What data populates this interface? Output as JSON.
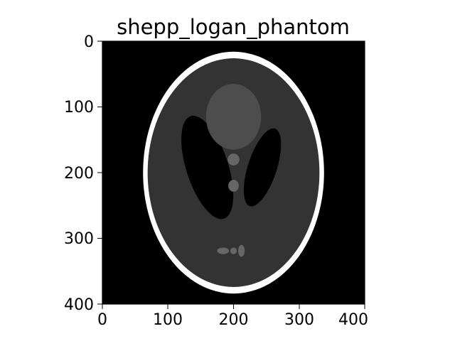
{
  "figure": {
    "title": "shepp_logan_phantom",
    "image_size": [
      400,
      400
    ],
    "x_axis": {
      "range": [
        0,
        400
      ],
      "ticks": [
        "0",
        "100",
        "200",
        "300",
        "400"
      ]
    },
    "y_axis": {
      "range": [
        0,
        400
      ],
      "inverted": true,
      "ticks": [
        "0",
        "100",
        "200",
        "300",
        "400"
      ]
    },
    "colormap": "gray",
    "colors": {
      "background": "#000000",
      "outer_skull": "#ffffff",
      "brain": "#333333",
      "dark_regions": "#000000",
      "light_region": "#4d4d4d",
      "small_features": "#666666"
    }
  },
  "phantom_regions": [
    {
      "name": "skull-outer",
      "cx": 200,
      "cy": 200,
      "rx": 138,
      "ry": 184,
      "rot": 0,
      "fill": "#ffffff"
    },
    {
      "name": "brain",
      "cx": 200,
      "cy": 200,
      "rx": 131,
      "ry": 174,
      "rot": 0,
      "fill": "#333333"
    },
    {
      "name": "dark-left",
      "cx": 160,
      "cy": 192,
      "rx": 32,
      "ry": 82,
      "rot": -18,
      "fill": "#000000"
    },
    {
      "name": "dark-right",
      "cx": 244,
      "cy": 192,
      "rx": 22,
      "ry": 62,
      "rot": 18,
      "fill": "#000000"
    },
    {
      "name": "light-top",
      "cx": 200,
      "cy": 115,
      "rx": 42,
      "ry": 50,
      "rot": 0,
      "fill": "#4d4d4d"
    },
    {
      "name": "spot-upper",
      "cx": 200,
      "cy": 180,
      "rx": 9,
      "ry": 9,
      "rot": 0,
      "fill": "#666666"
    },
    {
      "name": "spot-middle",
      "cx": 200,
      "cy": 220,
      "rx": 8,
      "ry": 9,
      "rot": 0,
      "fill": "#666666"
    },
    {
      "name": "spot-bottom-left",
      "cx": 184,
      "cy": 319,
      "rx": 9,
      "ry": 5,
      "rot": 0,
      "fill": "#666666"
    },
    {
      "name": "spot-bottom-mid",
      "cx": 200,
      "cy": 319,
      "rx": 5,
      "ry": 5,
      "rot": 0,
      "fill": "#666666"
    },
    {
      "name": "spot-bottom-right",
      "cx": 212,
      "cy": 319,
      "rx": 5,
      "ry": 9,
      "rot": 0,
      "fill": "#666666"
    }
  ]
}
